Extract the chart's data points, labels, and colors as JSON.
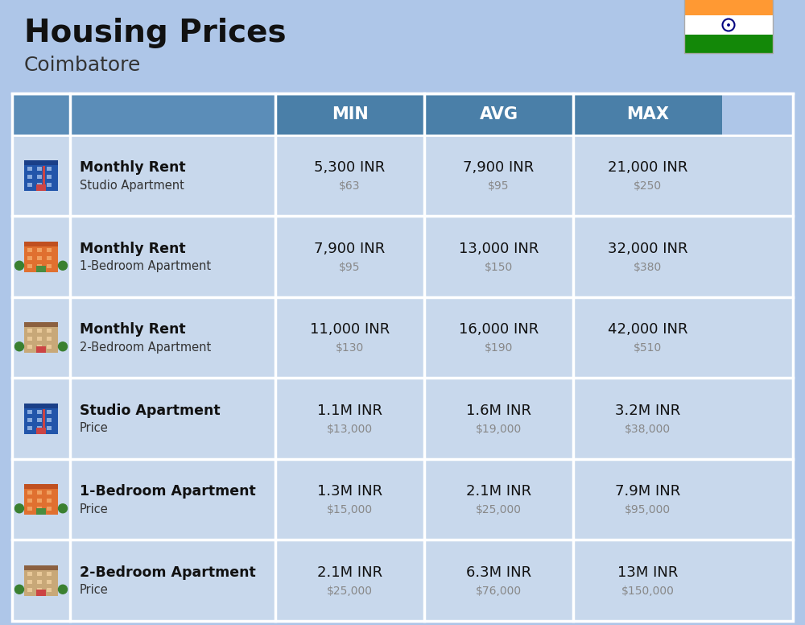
{
  "title": "Housing Prices",
  "subtitle": "Coimbatore",
  "bg_color": "#aec6e8",
  "header_bg": "#5b8db8",
  "header_text_color": "#ffffff",
  "row_bg_light": "#c5d9ee",
  "row_bg_dark": "#b8cfe8",
  "divider_color": "#ffffff",
  "col_headers": [
    "MIN",
    "AVG",
    "MAX"
  ],
  "rows": [
    {
      "bold_label": "Monthly Rent",
      "sub_label": "Studio Apartment",
      "min_inr": "5,300 INR",
      "min_usd": "$63",
      "avg_inr": "7,900 INR",
      "avg_usd": "$95",
      "max_inr": "21,000 INR",
      "max_usd": "$250",
      "icon_type": "blue_studio"
    },
    {
      "bold_label": "Monthly Rent",
      "sub_label": "1-Bedroom Apartment",
      "min_inr": "7,900 INR",
      "min_usd": "$95",
      "avg_inr": "13,000 INR",
      "avg_usd": "$150",
      "max_inr": "32,000 INR",
      "max_usd": "$380",
      "icon_type": "orange_1bed"
    },
    {
      "bold_label": "Monthly Rent",
      "sub_label": "2-Bedroom Apartment",
      "min_inr": "11,000 INR",
      "min_usd": "$130",
      "avg_inr": "16,000 INR",
      "avg_usd": "$190",
      "max_inr": "42,000 INR",
      "max_usd": "$510",
      "icon_type": "beige_2bed"
    },
    {
      "bold_label": "Studio Apartment",
      "sub_label": "Price",
      "min_inr": "1.1M INR",
      "min_usd": "$13,000",
      "avg_inr": "1.6M INR",
      "avg_usd": "$19,000",
      "max_inr": "3.2M INR",
      "max_usd": "$38,000",
      "icon_type": "blue_studio2"
    },
    {
      "bold_label": "1-Bedroom Apartment",
      "sub_label": "Price",
      "min_inr": "1.3M INR",
      "min_usd": "$15,000",
      "avg_inr": "2.1M INR",
      "avg_usd": "$25,000",
      "max_inr": "7.9M INR",
      "max_usd": "$95,000",
      "icon_type": "orange_1bed2"
    },
    {
      "bold_label": "2-Bedroom Apartment",
      "sub_label": "Price",
      "min_inr": "2.1M INR",
      "min_usd": "$25,000",
      "avg_inr": "6.3M INR",
      "avg_usd": "$76,000",
      "max_inr": "13M INR",
      "max_usd": "$150,000",
      "icon_type": "beige_2bed2"
    }
  ]
}
